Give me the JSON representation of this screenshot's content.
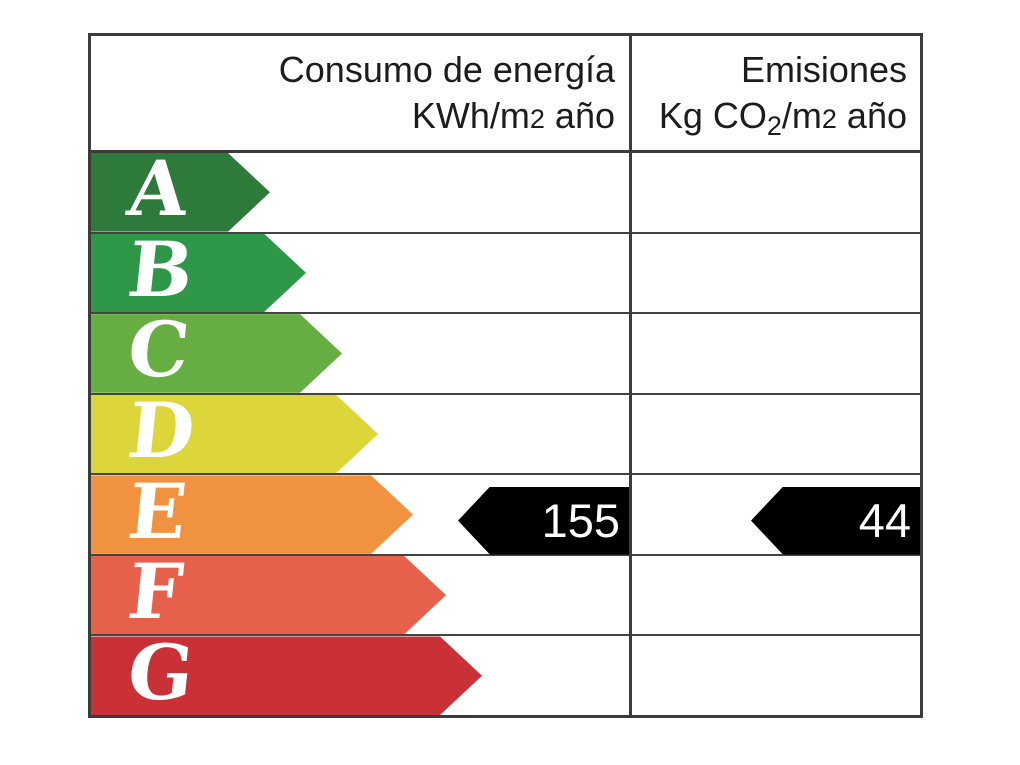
{
  "header": {
    "consumption": {
      "line1": "Consumo de energía",
      "line2_prefix": "KWh/m",
      "line2_digit": "2",
      "line2_suffix": " año"
    },
    "emissions": {
      "line1": "Emisiones",
      "line2_part1": "Kg CO",
      "line2_sub": "2",
      "line2_part2": "/m",
      "line2_digit": "2",
      "line2_suffix": " año"
    }
  },
  "values": {
    "consumption": "155",
    "emissions": "44"
  },
  "colors": {
    "grid_line": "#3b3b38",
    "row_line": "#454540",
    "header_text": "#1c1c1c",
    "rating_letter_text": "#ffffff",
    "value_arrow_fill": "#000000",
    "value_text": "#ffffff"
  },
  "chart_data": {
    "type": "bar",
    "title": "",
    "columns": [
      "Consumo de energía KWh/m2 año",
      "Emisiones Kg CO2/m2 año"
    ],
    "categories": [
      "A",
      "B",
      "C",
      "D",
      "E",
      "F",
      "G"
    ],
    "series": [
      {
        "name": "rating-scale-arrow-length-px",
        "values": [
          179,
          215,
          251,
          287,
          322,
          355,
          391
        ]
      }
    ],
    "bar_colors": [
      "#2d7a3a",
      "#2f9748",
      "#66ae41",
      "#dcd63b",
      "#f0923f",
      "#e7604b",
      "#c93137"
    ],
    "annotations": [
      {
        "key": "consumption",
        "label": "155",
        "value": 155,
        "rating_row": "E",
        "column": "Consumo de energía KWh/m2 año"
      },
      {
        "key": "emissions",
        "label": "44",
        "value": 44,
        "rating_row": "E",
        "column": "Emisiones Kg CO2/m2 año"
      }
    ],
    "legend_position": "none",
    "grid": "table-lines"
  }
}
